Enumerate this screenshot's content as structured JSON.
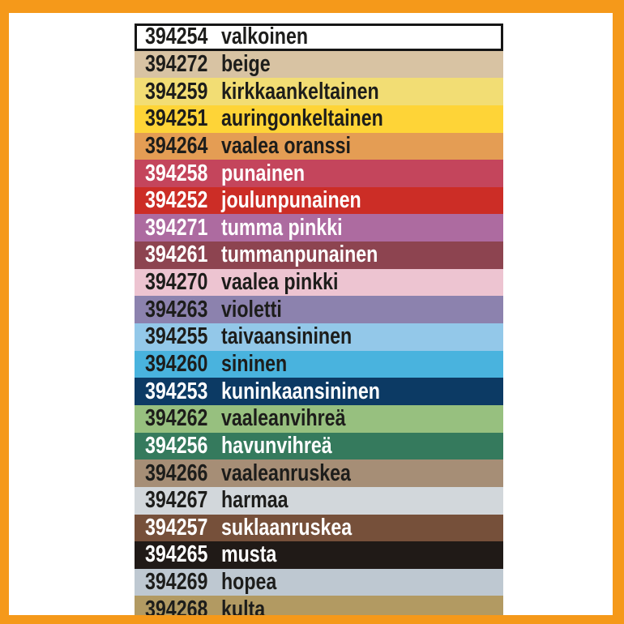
{
  "page": {
    "frame_color": "#f5991a",
    "background": "#ffffff",
    "text_dark": "#1d1d1b",
    "text_light": "#ffffff",
    "outline_color": "#161616"
  },
  "chart_data": {
    "type": "table",
    "title": "",
    "columns": [
      "product_code",
      "color_name_fi"
    ],
    "legend_position": "none",
    "rows": [
      {
        "code": "394254",
        "name": "valkoinen",
        "swatch": "#ffffff",
        "text_color": "#1d1d1b"
      },
      {
        "code": "394272",
        "name": "beige",
        "swatch": "#d8c3a3",
        "text_color": "#1d1d1b"
      },
      {
        "code": "394259",
        "name": "kirkkaankeltainen",
        "swatch": "#f2dd74",
        "text_color": "#1d1d1b"
      },
      {
        "code": "394251",
        "name": "auringonkeltainen",
        "swatch": "#fed437",
        "text_color": "#1d1d1b"
      },
      {
        "code": "394264",
        "name": "vaalea oranssi",
        "swatch": "#e49d54",
        "text_color": "#1d1d1b"
      },
      {
        "code": "394258",
        "name": "punainen",
        "swatch": "#c4455c",
        "text_color": "#ffffff"
      },
      {
        "code": "394252",
        "name": "joulunpunainen",
        "swatch": "#cc2d26",
        "text_color": "#ffffff"
      },
      {
        "code": "394271",
        "name": "tumma pinkki",
        "swatch": "#ad6ba0",
        "text_color": "#ffffff"
      },
      {
        "code": "394261",
        "name": "tummanpunainen",
        "swatch": "#8d4450",
        "text_color": "#ffffff"
      },
      {
        "code": "394270",
        "name": "vaalea pinkki",
        "swatch": "#edc4d1",
        "text_color": "#1d1d1b"
      },
      {
        "code": "394263",
        "name": "violetti",
        "swatch": "#8c82ae",
        "text_color": "#1d1d1b"
      },
      {
        "code": "394255",
        "name": "taivaansininen",
        "swatch": "#93c8e9",
        "text_color": "#1d1d1b"
      },
      {
        "code": "394260",
        "name": "sininen",
        "swatch": "#49b3de",
        "text_color": "#1d1d1b"
      },
      {
        "code": "394253",
        "name": "kuninkaansininen",
        "swatch": "#0c3a64",
        "text_color": "#ffffff"
      },
      {
        "code": "394262",
        "name": "vaaleanvihreä",
        "swatch": "#97c07f",
        "text_color": "#1d1d1b"
      },
      {
        "code": "394256",
        "name": "havunvihreä",
        "swatch": "#357a5d",
        "text_color": "#ffffff"
      },
      {
        "code": "394266",
        "name": "vaaleanruskea",
        "swatch": "#a68e76",
        "text_color": "#1d1d1b"
      },
      {
        "code": "394267",
        "name": "harmaa",
        "swatch": "#d2d7db",
        "text_color": "#1d1d1b"
      },
      {
        "code": "394257",
        "name": "suklaanruskea",
        "swatch": "#76503a",
        "text_color": "#ffffff"
      },
      {
        "code": "394265",
        "name": "musta",
        "swatch": "#201a17",
        "text_color": "#ffffff"
      },
      {
        "code": "394269",
        "name": "hopea",
        "swatch": "#bec8d1",
        "text_color": "#1d1d1b"
      },
      {
        "code": "394268",
        "name": "kulta",
        "swatch": "#b29a62",
        "text_color": "#1d1d1b"
      }
    ]
  }
}
